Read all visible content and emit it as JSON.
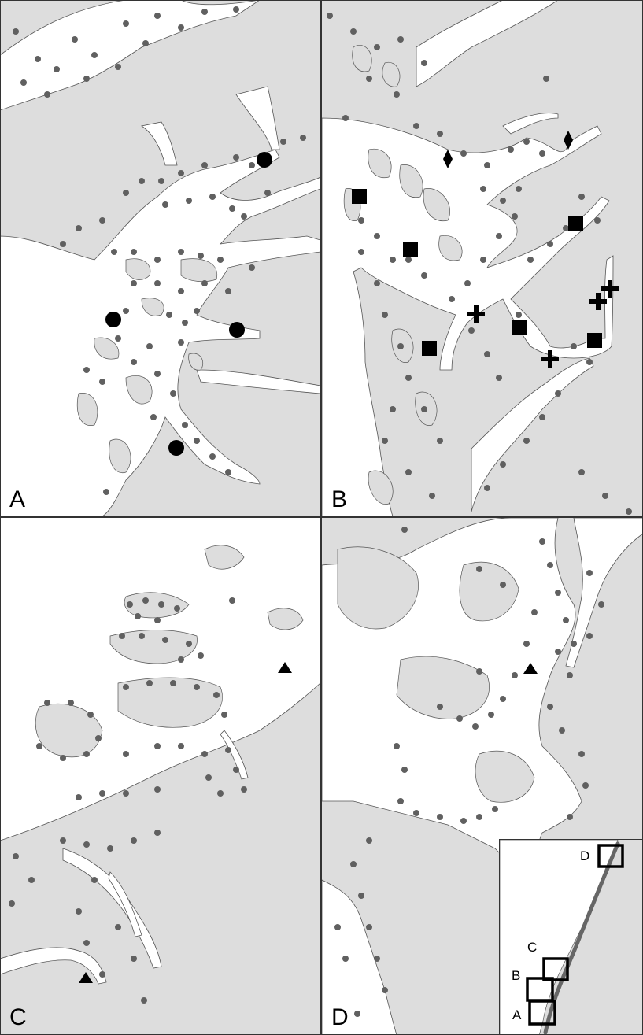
{
  "figure": {
    "colors": {
      "land": "#dddddd",
      "coast": "#555555",
      "water": "#ffffff",
      "site_dot": "#606060",
      "symbol": "#000000"
    },
    "panels": [
      {
        "label": "A",
        "special_symbol": "circle"
      },
      {
        "label": "B",
        "special_symbols": [
          "square",
          "cross",
          "diamond"
        ]
      },
      {
        "label": "C",
        "special_symbol": "triangle"
      },
      {
        "label": "D",
        "special_symbol": "triangle"
      }
    ],
    "inset": {
      "box_labels": [
        "D",
        "C",
        "B",
        "A"
      ]
    }
  }
}
